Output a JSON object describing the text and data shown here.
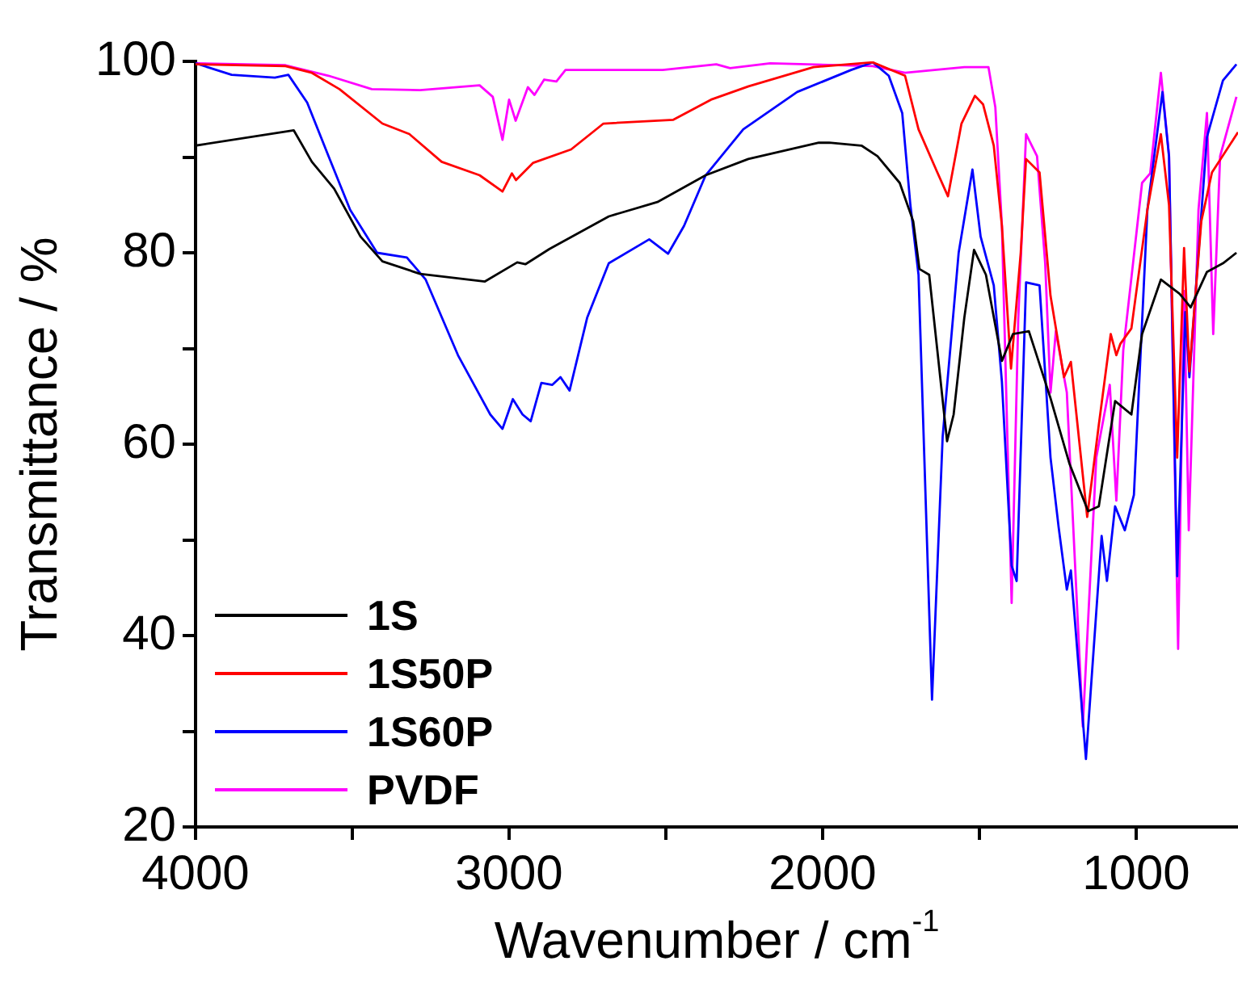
{
  "chart_data": {
    "type": "line",
    "xlabel": "Wavenumber / cm$^{-1}$",
    "ylabel": "Transmittance / %",
    "xlim": [
      4000,
      675
    ],
    "xticks": [
      4000,
      {
        "value": 3500,
        "label": null
      },
      3000,
      {
        "value": 2500,
        "label": null
      },
      2000,
      {
        "value": 1500,
        "label": null
      },
      1000
    ],
    "ylim": [
      20,
      100
    ],
    "yticks": [
      20,
      {
        "value": 30,
        "label": null
      },
      40,
      {
        "value": 50,
        "label": null
      },
      60,
      {
        "value": 70,
        "label": null
      },
      80,
      {
        "value": 90,
        "label": null
      },
      100
    ],
    "legend": "bottom left",
    "marker": "none",
    "line_style": "solid",
    "series": [
      {
        "name": "1S",
        "color": "#000000",
        "x": [
          4000,
          3687,
          3629,
          3558,
          3474,
          3404,
          3284,
          3077,
          2974,
          2948,
          2871,
          2682,
          2527,
          2373,
          2237,
          2012,
          1979,
          1876,
          1825,
          1754,
          1711,
          1691,
          1660,
          1634,
          1603,
          1582,
          1548,
          1517,
          1479,
          1428,
          1393,
          1342,
          1273,
          1213,
          1153,
          1119,
          1067,
          1015,
          981,
          921,
          861,
          826,
          774,
          723,
          680
        ],
        "values": [
          91.2,
          92.8,
          89.5,
          86.7,
          81.7,
          79.1,
          77.8,
          77.0,
          79.0,
          78.8,
          80.4,
          83.8,
          85.3,
          88.1,
          89.8,
          91.5,
          91.5,
          91.2,
          90.1,
          87.3,
          83.3,
          78.3,
          77.7,
          69.8,
          60.3,
          63.1,
          73.2,
          80.3,
          77.7,
          68.7,
          71.5,
          71.8,
          64.8,
          58.0,
          53.0,
          53.5,
          64.5,
          63.1,
          71.5,
          77.2,
          75.7,
          74.3,
          78.0,
          78.9,
          80.0
        ]
      },
      {
        "name": "1S50P",
        "color": "#ff0000",
        "x": [
          4000,
          3713,
          3629,
          3541,
          3404,
          3318,
          3215,
          3094,
          3021,
          2991,
          2978,
          2923,
          2802,
          2699,
          2476,
          2356,
          2236,
          2029,
          1840,
          1737,
          1694,
          1634,
          1600,
          1557,
          1514,
          1488,
          1454,
          1428,
          1399,
          1368,
          1351,
          1308,
          1273,
          1230,
          1208,
          1156,
          1119,
          1081,
          1063,
          1050,
          1015,
          964,
          921,
          895,
          869,
          847,
          830,
          792,
          758,
          675
        ],
        "values": [
          99.7,
          99.5,
          98.8,
          97.1,
          93.5,
          92.4,
          89.5,
          88.1,
          86.4,
          88.3,
          87.6,
          89.4,
          90.8,
          93.5,
          93.9,
          96.0,
          97.4,
          99.4,
          99.9,
          98.5,
          92.9,
          88.4,
          85.9,
          93.5,
          96.4,
          95.5,
          91.2,
          82.8,
          67.9,
          80.0,
          89.8,
          88.4,
          75.5,
          67.0,
          68.6,
          52.4,
          62.0,
          71.5,
          69.3,
          70.5,
          72.1,
          84.5,
          92.4,
          85.0,
          58.6,
          80.5,
          67.6,
          83.3,
          88.4,
          92.6
        ]
      },
      {
        "name": "1S60P",
        "color": "#0000ff",
        "x": [
          4000,
          3885,
          3747,
          3704,
          3644,
          3576,
          3507,
          3421,
          3326,
          3266,
          3163,
          3060,
          3021,
          2988,
          2957,
          2931,
          2897,
          2862,
          2836,
          2807,
          2751,
          2682,
          2553,
          2493,
          2442,
          2373,
          2253,
          2081,
          1909,
          1840,
          1789,
          1746,
          1720,
          1694,
          1651,
          1617,
          1566,
          1522,
          1496,
          1454,
          1428,
          1397,
          1381,
          1351,
          1308,
          1273,
          1247,
          1221,
          1208,
          1160,
          1110,
          1093,
          1067,
          1036,
          1007,
          964,
          916,
          895,
          869,
          843,
          830,
          774,
          723,
          680
        ],
        "values": [
          99.8,
          98.6,
          98.3,
          98.6,
          95.7,
          90.1,
          84.5,
          80.0,
          79.5,
          77.2,
          69.3,
          63.1,
          61.6,
          64.7,
          63.1,
          62.4,
          66.4,
          66.2,
          67.0,
          65.6,
          73.2,
          78.9,
          81.4,
          79.9,
          82.8,
          88.1,
          92.9,
          96.8,
          99.1,
          99.9,
          98.5,
          94.6,
          85.0,
          77.7,
          33.3,
          60.8,
          80.0,
          88.7,
          81.7,
          76.6,
          66.5,
          47.3,
          45.7,
          76.9,
          76.6,
          58.6,
          51.3,
          44.8,
          46.8,
          27.1,
          50.4,
          45.7,
          53.5,
          51.0,
          54.7,
          84.5,
          96.8,
          90.1,
          46.2,
          73.8,
          67.0,
          92.1,
          98.0,
          99.7
        ]
      },
      {
        "name": "PVDF",
        "color": "#ff00ff",
        "x": [
          4000,
          3713,
          3576,
          3438,
          3284,
          3094,
          3052,
          3021,
          3000,
          2979,
          2940,
          2919,
          2888,
          2849,
          2820,
          2510,
          2339,
          2295,
          2167,
          1840,
          1737,
          1548,
          1471,
          1449,
          1428,
          1397,
          1376,
          1351,
          1316,
          1290,
          1273,
          1256,
          1221,
          1170,
          1127,
          1084,
          1063,
          1041,
          981,
          955,
          921,
          895,
          866,
          847,
          832,
          801,
          774,
          754,
          732,
          680
        ],
        "values": [
          99.8,
          99.6,
          98.5,
          97.1,
          97.0,
          97.5,
          96.3,
          91.8,
          96.0,
          93.8,
          97.3,
          96.5,
          98.1,
          97.9,
          99.1,
          99.1,
          99.7,
          99.3,
          99.8,
          99.5,
          98.8,
          99.4,
          99.4,
          95.2,
          82.8,
          43.4,
          73.0,
          92.4,
          90.1,
          78.9,
          65.4,
          71.8,
          65.4,
          30.5,
          58.6,
          66.2,
          54.1,
          69.8,
          87.3,
          88.3,
          98.8,
          90.1,
          38.6,
          76.0,
          51.0,
          84.5,
          94.6,
          71.5,
          90.1,
          96.3
        ]
      }
    ]
  }
}
